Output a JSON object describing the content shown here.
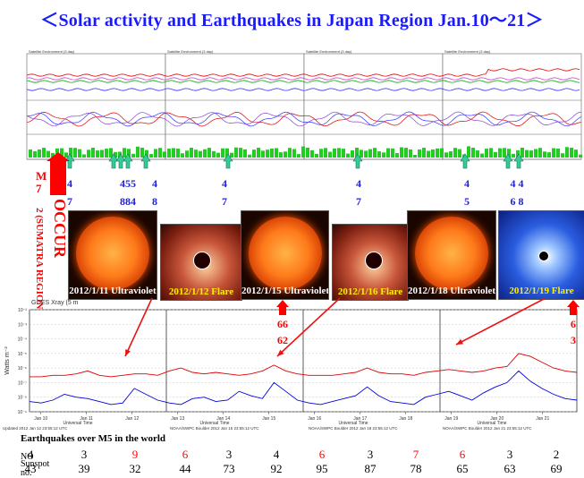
{
  "title": "＜Solar activity and Earthquakes in Japan Region Jan.10～21＞",
  "top_panels": [
    {
      "header": "Satellite Environment (3 day)",
      "updated": "Updated 2012 Jan 13 23:55:12 UTC",
      "footer": "Universal Time"
    },
    {
      "header": "Satellite Environment (3 day)",
      "updated": "NOAA/SWPC Boulder, Oct 2012 Jan 15 23:55:08 UTC",
      "footer": "Universal Time"
    },
    {
      "header": "Satellite Environment (3 day)",
      "updated": "NOAA/SWPC Boulder, Oct 2012 Jan 18 23:55:08 UTC",
      "footer": "Universal Time"
    },
    {
      "header": "Satellite Environment (3 day)",
      "updated": "NOAA/SWPC Boulder, Oct 2012 Jan 21 23:55:08 UTC",
      "footer": "Universal Time"
    }
  ],
  "occur": {
    "m_label": "M",
    "m_value": "7",
    "text": "OCCUR",
    "sub": "2 (SUMATRA REGION)"
  },
  "quake_markers": [
    {
      "top": "4",
      "bottom": "7"
    },
    {
      "top": "455",
      "bottom": "884"
    },
    {
      "top": "4",
      "bottom": "8"
    },
    {
      "top": "4",
      "bottom": "7"
    },
    {
      "top": "4",
      "bottom": "7"
    },
    {
      "top": "4",
      "bottom": "5"
    },
    {
      "top": "4 4",
      "bottom": "6 8"
    }
  ],
  "images": [
    {
      "caption": "2012/1/11 Ultraviolet",
      "kind": "sun"
    },
    {
      "caption": "2012/1/12 Flare",
      "kind": "corona"
    },
    {
      "caption": "2012/1/15 Ultraviolet",
      "kind": "sun"
    },
    {
      "caption": "2012/1/16 Flare",
      "kind": "corona"
    },
    {
      "caption": "2012/1/18 Ultraviolet",
      "kind": "sun"
    },
    {
      "caption": "2012/1/19 Flare",
      "kind": "lasco"
    }
  ],
  "flare_labels": [
    {
      "top": "66",
      "bottom": "62"
    },
    {
      "top": "6",
      "bottom": "3"
    }
  ],
  "xray": {
    "header": "GOES Xray (5 m",
    "ylabel": "Watts m⁻²",
    "updated_labels": [
      "Updated 2012 Jan 12 23:55:12 UTC",
      "NOAA/SWPC Boulder 2012 Jan 15 23:55:12 UTC",
      "NOAA/SWPC Boulder 2012 Jan 18 23:55:12 UTC",
      "NOAA/SWPC Boulder 2012 Jan 21 23:55:12 UTC"
    ],
    "axis_title": "Universal Time",
    "colors": {
      "long": "#dd0000",
      "short": "#0000dd"
    }
  },
  "chart_data": {
    "type": "line",
    "title": "GOES Xray (5 m",
    "xlabel": "Universal Time",
    "ylabel": "Watts m⁻²",
    "x_ticks": [
      "Jan 10",
      "Jan 11",
      "Jan 12",
      "Jan 13",
      "Jan 14",
      "Jan 15",
      "Jan 16",
      "Jan 17",
      "Jan 18",
      "Jan 19",
      "Jan 20",
      "Jan 21"
    ],
    "y_ticks": [
      "10⁻⁹",
      "10⁻⁸",
      "10⁻⁷",
      "10⁻⁶",
      "10⁻⁵",
      "10⁻⁴",
      "10⁻³",
      "10⁻²"
    ],
    "ylim_exp": [
      -9,
      -2
    ],
    "series": [
      {
        "values_exp": [
          -6.6,
          -6.6,
          -6.5,
          -6.5,
          -6.4,
          -6.2,
          -6.5,
          -6.6,
          -6.5,
          -6.4,
          -6.4,
          -6.5,
          -6.2,
          -6.0,
          -6.3,
          -6.4,
          -6.3,
          -6.4,
          -6.5,
          -6.4,
          -6.2,
          -5.8,
          -6.2,
          -6.4,
          -6.5,
          -6.5,
          -6.5,
          -6.4,
          -6.3,
          -6.0,
          -6.3,
          -6.4,
          -6.4,
          -6.5,
          -6.3,
          -6.2,
          -6.1,
          -6.2,
          -6.3,
          -6.2,
          -6.0,
          -5.9,
          -5.0,
          -5.2,
          -5.6,
          -6.0,
          -6.2,
          -6.3
        ]
      },
      {
        "values_exp": [
          -8.3,
          -8.4,
          -8.2,
          -7.8,
          -8.0,
          -8.1,
          -8.3,
          -8.5,
          -8.4,
          -7.4,
          -7.8,
          -8.2,
          -8.4,
          -8.5,
          -8.1,
          -8.0,
          -8.3,
          -8.2,
          -7.6,
          -7.9,
          -8.1,
          -7.0,
          -7.6,
          -8.2,
          -8.4,
          -8.5,
          -8.3,
          -8.1,
          -7.9,
          -7.3,
          -7.9,
          -8.3,
          -8.4,
          -8.5,
          -8.0,
          -7.8,
          -7.6,
          -7.9,
          -8.2,
          -7.7,
          -7.3,
          -7.0,
          -6.2,
          -6.9,
          -7.4,
          -7.8,
          -8.1,
          -8.2
        ]
      }
    ]
  },
  "earthquakes": {
    "header": "Earthquakes over M5 in the world",
    "no_label": "NO",
    "sunspot_label_1": "Sunspot",
    "sunspot_label_2": "no.",
    "no_values": [
      {
        "v": "4",
        "red": false
      },
      {
        "v": "3",
        "red": false
      },
      {
        "v": "9",
        "red": true
      },
      {
        "v": "6",
        "red": true
      },
      {
        "v": "3",
        "red": false
      },
      {
        "v": "4",
        "red": false
      },
      {
        "v": "6",
        "red": true
      },
      {
        "v": "3",
        "red": false
      },
      {
        "v": "7",
        "red": true
      },
      {
        "v": "6",
        "red": true
      },
      {
        "v": "3",
        "red": false
      },
      {
        "v": "2",
        "red": false
      }
    ],
    "sunspot_values": [
      "43",
      "39",
      "32",
      "44",
      "73",
      "92",
      "95",
      "87",
      "78",
      "65",
      "63",
      "69"
    ]
  }
}
